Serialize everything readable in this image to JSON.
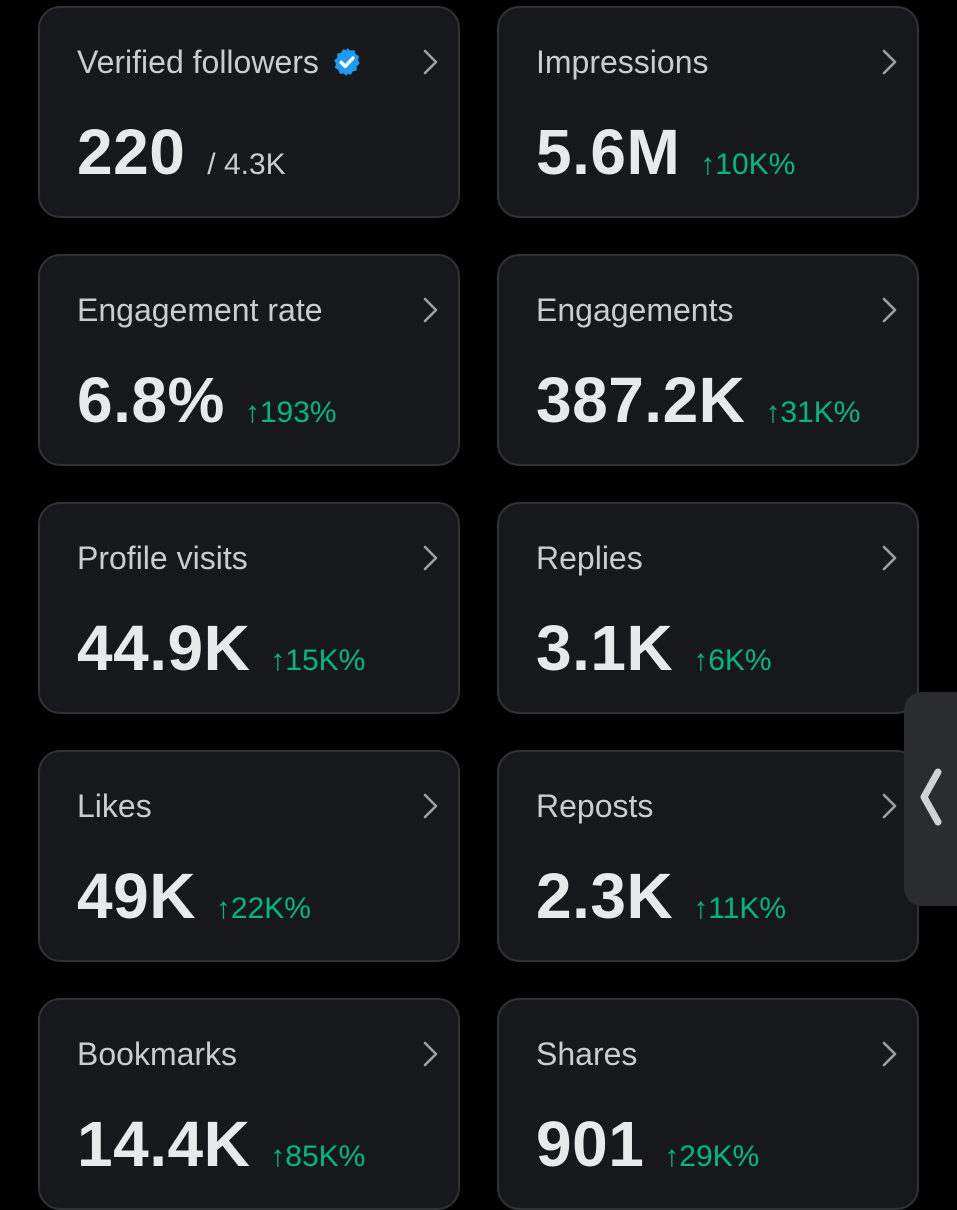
{
  "metrics": [
    {
      "label": "Verified followers",
      "value": "220",
      "secondary": "/ 4.3K",
      "change": "",
      "verified": true
    },
    {
      "label": "Impressions",
      "value": "5.6M",
      "secondary": "",
      "change": "↑10K%"
    },
    {
      "label": "Engagement rate",
      "value": "6.8%",
      "secondary": "",
      "change": "↑193%"
    },
    {
      "label": "Engagements",
      "value": "387.2K",
      "secondary": "",
      "change": "↑31K%"
    },
    {
      "label": "Profile visits",
      "value": "44.9K",
      "secondary": "",
      "change": "↑15K%"
    },
    {
      "label": "Replies",
      "value": "3.1K",
      "secondary": "",
      "change": "↑6K%"
    },
    {
      "label": "Likes",
      "value": "49K",
      "secondary": "",
      "change": "↑22K%"
    },
    {
      "label": "Reposts",
      "value": "2.3K",
      "secondary": "",
      "change": "↑11K%"
    },
    {
      "label": "Bookmarks",
      "value": "14.4K",
      "secondary": "",
      "change": "↑85K%"
    },
    {
      "label": "Shares",
      "value": "901",
      "secondary": "",
      "change": "↑29K%"
    }
  ],
  "colors": {
    "background": "#000000",
    "card": "#16181c",
    "card_border": "#2f3336",
    "positive_change": "#00ba7c",
    "verified_badge": "#1d9bf0"
  },
  "icons": {
    "card_arrow": "chevron-right-icon",
    "verified": "verified-badge-icon",
    "drawer": "chevron-left-icon"
  }
}
